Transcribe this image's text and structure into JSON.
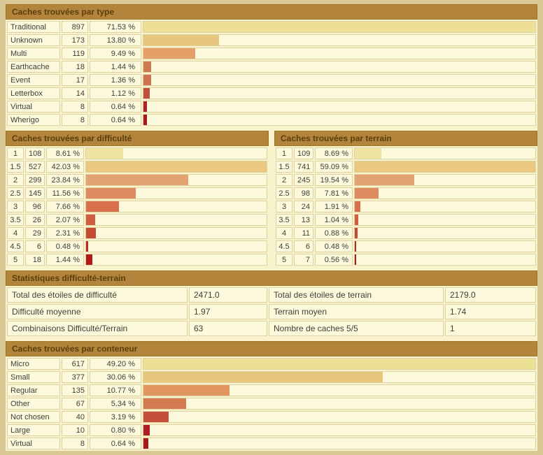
{
  "colors": {
    "page_background": "#d9c794",
    "content_background": "#f8f2cd",
    "header_background": "#b2843c",
    "header_border": "#9d7926",
    "header_text": "#5c3e0b",
    "cell_background": "#fdf9dc",
    "cell_border": "#ded2a2",
    "cell_text": "#40403a"
  },
  "sections": {
    "type": {
      "title": "Caches trouvées par type",
      "max_pct": 71.53,
      "rows": [
        {
          "label": "Traditional",
          "count": "897",
          "percent": "71.53 %",
          "pct": 71.53,
          "bar_color": "#ede096"
        },
        {
          "label": "Unknown",
          "count": "173",
          "percent": "13.80 %",
          "pct": 13.8,
          "bar_color": "#e6c77d"
        },
        {
          "label": "Multi",
          "count": "119",
          "percent": "9.49 %",
          "pct": 9.49,
          "bar_color": "#e59f68"
        },
        {
          "label": "Earthcache",
          "count": "18",
          "percent": "1.44 %",
          "pct": 1.44,
          "bar_color": "#d07950"
        },
        {
          "label": "Event",
          "count": "17",
          "percent": "1.36 %",
          "pct": 1.36,
          "bar_color": "#cd744e"
        },
        {
          "label": "Letterbox",
          "count": "14",
          "percent": "1.12 %",
          "pct": 1.12,
          "bar_color": "#c04e38"
        },
        {
          "label": "Virtual",
          "count": "8",
          "percent": "0.64 %",
          "pct": 0.64,
          "bar_color": "#b02125"
        },
        {
          "label": "Wherigo",
          "count": "8",
          "percent": "0.64 %",
          "pct": 0.64,
          "bar_color": "#aa171b"
        }
      ]
    },
    "difficulty": {
      "title": "Caches trouvées par difficulté",
      "max_pct": 42.03,
      "rows": [
        {
          "label": "1",
          "count": "108",
          "percent": "8.61 %",
          "pct": 8.61,
          "bar_color": "#efe3a1"
        },
        {
          "label": "1.5",
          "count": "527",
          "percent": "42.03 %",
          "pct": 42.03,
          "bar_color": "#eac87f"
        },
        {
          "label": "2",
          "count": "299",
          "percent": "23.84 %",
          "pct": 23.84,
          "bar_color": "#e2a271"
        },
        {
          "label": "2.5",
          "count": "145",
          "percent": "11.56 %",
          "pct": 11.56,
          "bar_color": "#dd8a5f"
        },
        {
          "label": "3",
          "count": "96",
          "percent": "7.66 %",
          "pct": 7.66,
          "bar_color": "#d96f4b"
        },
        {
          "label": "3.5",
          "count": "26",
          "percent": "2.07 %",
          "pct": 2.07,
          "bar_color": "#cf5d40"
        },
        {
          "label": "4",
          "count": "29",
          "percent": "2.31 %",
          "pct": 2.31,
          "bar_color": "#c64b34"
        },
        {
          "label": "4.5",
          "count": "6",
          "percent": "0.48 %",
          "pct": 0.48,
          "bar_color": "#ba2d26"
        },
        {
          "label": "5",
          "count": "18",
          "percent": "1.44 %",
          "pct": 1.44,
          "bar_color": "#b01a1d"
        }
      ]
    },
    "terrain": {
      "title": "Caches trouvées par terrain",
      "max_pct": 59.09,
      "rows": [
        {
          "label": "1",
          "count": "109",
          "percent": "8.69 %",
          "pct": 8.69,
          "bar_color": "#efe3a1"
        },
        {
          "label": "1.5",
          "count": "741",
          "percent": "59.09 %",
          "pct": 59.09,
          "bar_color": "#eac87f"
        },
        {
          "label": "2",
          "count": "245",
          "percent": "19.54 %",
          "pct": 19.54,
          "bar_color": "#e2a271"
        },
        {
          "label": "2.5",
          "count": "98",
          "percent": "7.81 %",
          "pct": 7.81,
          "bar_color": "#dd8a5f"
        },
        {
          "label": "3",
          "count": "24",
          "percent": "1.91 %",
          "pct": 1.91,
          "bar_color": "#d96f4b"
        },
        {
          "label": "3.5",
          "count": "13",
          "percent": "1.04 %",
          "pct": 1.04,
          "bar_color": "#cf5d40"
        },
        {
          "label": "4",
          "count": "11",
          "percent": "0.88 %",
          "pct": 0.88,
          "bar_color": "#c64b34"
        },
        {
          "label": "4.5",
          "count": "6",
          "percent": "0.48 %",
          "pct": 0.48,
          "bar_color": "#ba2d26"
        },
        {
          "label": "5",
          "count": "7",
          "percent": "0.56 %",
          "pct": 0.56,
          "bar_color": "#b01a1d"
        }
      ]
    },
    "stats": {
      "title": "Statistiques difficulté-terrain",
      "rows": [
        {
          "cells": [
            "Total des étoiles de difficulté",
            "2471.0",
            "Total des étoiles de terrain",
            "2179.0"
          ]
        },
        {
          "cells": [
            "Difficulté moyenne",
            "1.97",
            "Terrain moyen",
            "1.74"
          ]
        },
        {
          "cells": [
            "Combinaisons Difficulté/Terrain",
            "63",
            "Nombre de caches 5/5",
            "1"
          ]
        }
      ]
    },
    "container": {
      "title": "Caches trouvées par conteneur",
      "max_pct": 49.2,
      "rows": [
        {
          "label": "Micro",
          "count": "617",
          "percent": "49.20 %",
          "pct": 49.2,
          "bar_color": "#ece095"
        },
        {
          "label": "Small",
          "count": "377",
          "percent": "30.06 %",
          "pct": 30.06,
          "bar_color": "#e7c77c"
        },
        {
          "label": "Regular",
          "count": "135",
          "percent": "10.77 %",
          "pct": 10.77,
          "bar_color": "#e29760"
        },
        {
          "label": "Other",
          "count": "67",
          "percent": "5.34 %",
          "pct": 5.34,
          "bar_color": "#d37a51"
        },
        {
          "label": "Not chosen",
          "count": "40",
          "percent": "3.19 %",
          "pct": 3.19,
          "bar_color": "#c4503a"
        },
        {
          "label": "Large",
          "count": "10",
          "percent": "0.80 %",
          "pct": 0.8,
          "bar_color": "#ad1f22"
        },
        {
          "label": "Virtual",
          "count": "8",
          "percent": "0.64 %",
          "pct": 0.64,
          "bar_color": "#a9171b"
        }
      ]
    }
  }
}
